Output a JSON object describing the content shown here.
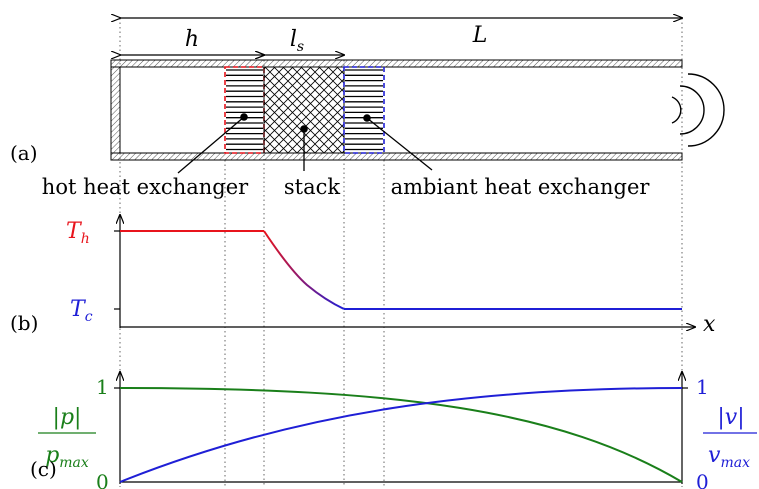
{
  "panel_a": {
    "label": "(a)",
    "dims": {
      "h": "h",
      "ls": "l",
      "ls_sub": "s",
      "L": "L"
    },
    "components": {
      "hot": "hot heat exchanger",
      "stack": "stack",
      "ambient": "ambiant heat exchanger"
    },
    "colors": {
      "hot": "#e8141c",
      "ambient": "#1f1fd6"
    }
  },
  "panel_b": {
    "label": "(b)",
    "y_ticks": {
      "hot": "T",
      "hot_sub": "h",
      "cold": "T",
      "cold_sub": "c"
    },
    "x_label": "x",
    "colors": {
      "hot": "#e8141c",
      "cold": "#1f1fd6"
    }
  },
  "panel_c": {
    "label": "(c)",
    "left_axis": {
      "tick_top": "1",
      "tick_bottom": "0",
      "num": "|p|",
      "den": "p",
      "den_sub": "max",
      "color": "#1a7f1a"
    },
    "right_axis": {
      "tick_top": "1",
      "tick_bottom": "0",
      "num": "|v|",
      "den": "v",
      "den_sub": "max",
      "color": "#1f1fd6"
    }
  }
}
